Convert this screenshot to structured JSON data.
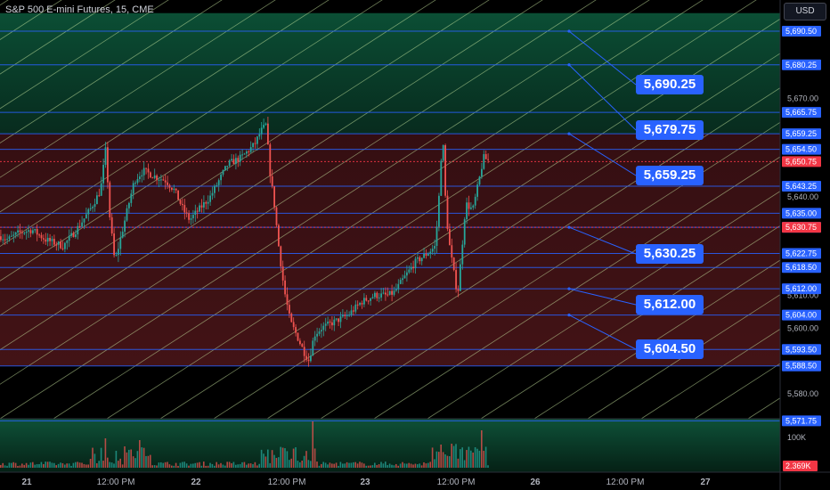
{
  "header": {
    "title": "S&P 500 E-mini Futures, 15, CME",
    "currency": "USD"
  },
  "chart_data": {
    "type": "candlestick",
    "symbol": "S&P 500 E-mini Futures",
    "interval": "15",
    "exchange": "CME",
    "ylim": [
      5567,
      5696
    ],
    "y_ticks": [
      5580,
      5600,
      5610,
      5640,
      5670
    ],
    "x_ticks": [
      "21",
      "12:00 PM",
      "22",
      "12:00 PM",
      "23",
      "12:00 PM",
      "26",
      "12:00 PM",
      "27"
    ],
    "level_lines": [
      5690.5,
      5680.25,
      5665.75,
      5659.25,
      5654.5,
      5643.25,
      5635.0,
      5630.75,
      5622.75,
      5618.5,
      5612.0,
      5604.0,
      5593.5,
      5588.5,
      5571.75
    ],
    "level_labels": [
      "5,690.50",
      "5,680.25",
      "5,665.75",
      "5,659.25",
      "5,654.50",
      "5,643.25",
      "5,635.00",
      "5,630.75",
      "5,622.75",
      "5,618.50",
      "5,612.00",
      "5,604.00",
      "5,593.50",
      "5,588.50",
      "5,571.75"
    ],
    "highlight_levels": [
      5650.75,
      5630.75
    ],
    "highlight_labels": [
      "5,650.75",
      "5,630.75"
    ],
    "callouts": [
      {
        "price": 5690.5,
        "label": "5,690.25"
      },
      {
        "price": 5680.25,
        "label": "5,679.75"
      },
      {
        "price": 5659.25,
        "label": "5,659.25"
      },
      {
        "price": 5630.75,
        "label": "5,630.25"
      },
      {
        "price": 5612.0,
        "label": "5,612.00"
      },
      {
        "price": 5604.0,
        "label": "5,604.50"
      }
    ],
    "volume_label": "100K",
    "last_volume": "2.369K",
    "price_path": [
      [
        0,
        5628
      ],
      [
        8,
        5627
      ],
      [
        20,
        5629
      ],
      [
        35,
        5630
      ],
      [
        50,
        5627
      ],
      [
        70,
        5625
      ],
      [
        85,
        5630
      ],
      [
        100,
        5636
      ],
      [
        112,
        5642
      ],
      [
        118,
        5655
      ],
      [
        122,
        5635
      ],
      [
        128,
        5620
      ],
      [
        135,
        5628
      ],
      [
        142,
        5636
      ],
      [
        150,
        5645
      ],
      [
        160,
        5648
      ],
      [
        175,
        5646
      ],
      [
        185,
        5645
      ],
      [
        195,
        5642
      ],
      [
        205,
        5636
      ],
      [
        212,
        5633
      ],
      [
        222,
        5636
      ],
      [
        235,
        5640
      ],
      [
        245,
        5645
      ],
      [
        255,
        5650
      ],
      [
        270,
        5652
      ],
      [
        285,
        5656
      ],
      [
        292,
        5660
      ],
      [
        298,
        5662
      ],
      [
        302,
        5648
      ],
      [
        307,
        5638
      ],
      [
        312,
        5625
      ],
      [
        318,
        5612
      ],
      [
        325,
        5602
      ],
      [
        332,
        5598
      ],
      [
        340,
        5593
      ],
      [
        346,
        5590
      ],
      [
        352,
        5598
      ],
      [
        360,
        5600
      ],
      [
        375,
        5602
      ],
      [
        390,
        5604
      ],
      [
        405,
        5608
      ],
      [
        420,
        5610
      ],
      [
        435,
        5610
      ],
      [
        442,
        5611
      ],
      [
        452,
        5615
      ],
      [
        465,
        5620
      ],
      [
        480,
        5623
      ],
      [
        488,
        5625
      ],
      [
        492,
        5640
      ],
      [
        496,
        5660
      ],
      [
        500,
        5635
      ],
      [
        504,
        5625
      ],
      [
        508,
        5618
      ],
      [
        513,
        5610
      ],
      [
        518,
        5625
      ],
      [
        522,
        5638
      ],
      [
        530,
        5636
      ],
      [
        537,
        5645
      ],
      [
        542,
        5652
      ],
      [
        548,
        5651
      ]
    ]
  }
}
